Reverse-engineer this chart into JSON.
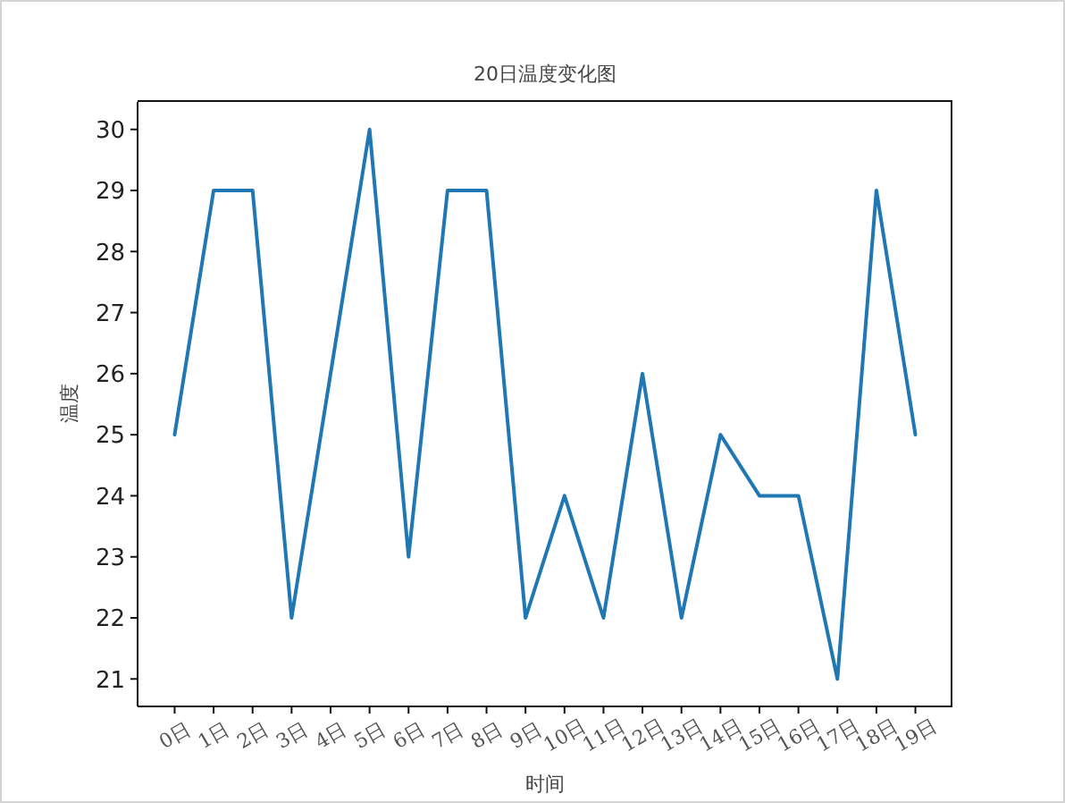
{
  "chart_data": {
    "type": "line",
    "title": "20日温度变化图",
    "xlabel": "时间",
    "ylabel": "温度",
    "categories": [
      "0日",
      "1日",
      "2日",
      "3日",
      "4日",
      "5日",
      "6日",
      "7日",
      "8日",
      "9日",
      "10日",
      "11日",
      "12日",
      "13日",
      "14日",
      "15日",
      "16日",
      "17日",
      "18日",
      "19日"
    ],
    "series": [
      {
        "color": "#1f77b4",
        "values": [
          25,
          29,
          29,
          22,
          26,
          30,
          23,
          29,
          29,
          22,
          24,
          22,
          26,
          22,
          25,
          24,
          24,
          21,
          29,
          25
        ]
      }
    ],
    "ylim": [
      20.55,
      30.45
    ],
    "yticks": [
      21,
      22,
      23,
      24,
      25,
      26,
      27,
      28,
      29,
      30
    ]
  }
}
